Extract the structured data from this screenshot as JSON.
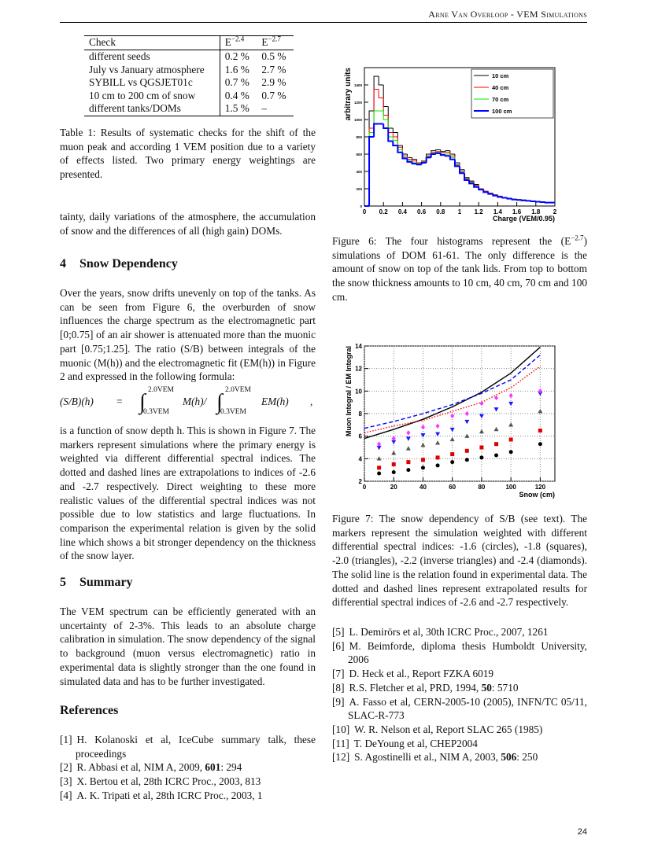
{
  "header": {
    "running_title": "Arne Van Overloop - VEM Simulations",
    "page_number": "24"
  },
  "table": {
    "header": [
      "Check",
      {
        "base": "E",
        "sup": "−2.4"
      },
      {
        "base": "E",
        "sup": "−2.7"
      }
    ],
    "rows": [
      [
        "different seeds",
        "0.2 %",
        "0.5 %"
      ],
      [
        "July vs January atmosphere",
        "1.6 %",
        "2.7 %"
      ],
      [
        "SYBILL vs QGSJET01c",
        "0.7 %",
        "2.9 %"
      ],
      [
        "10 cm to 200 cm of snow",
        "0.4 %",
        "0.7 %"
      ],
      [
        "different tanks/DOMs",
        "1.5 %",
        "–"
      ]
    ],
    "caption": "Table 1: Results of systematic checks for the shift of the muon peak and according 1 VEM position due to a variety of effects listed. Two primary energy weightings are presented."
  },
  "continuation": "tainty, daily variations of the atmosphere, the accumulation of snow and the differences of all (high gain) DOMs.",
  "section4": {
    "number": "4",
    "title": "Snow Dependency",
    "paragraph_1": "Over the years, snow drifts unevenly on top of the tanks. As can be seen from Figure 6, the overburden of snow influences the charge spectrum as the electromagnetic part [0;0.75] of an air shower is attenuated more than the muonic part [0.75;1.25]. The ratio (S/B) between integrals of the muonic (M(h)) and the electromagnetic fit (EM(h)) in Figure 2 and expressed in the following formula:",
    "formula": {
      "lhs": "(S/B)(h)",
      "equals": "=",
      "integral": "∫",
      "upper": "2.0VEM",
      "lower": "0.3VEM",
      "numerator": "M(h)/",
      "denominator": "EM(h)",
      "end": ","
    },
    "paragraph_2": "is a function of snow depth h. This is shown in Figure 7. The markers represent simulations where the primary energy is weighted via different differential spectral indices. The dotted and dashed lines are extrapolations to indices of -2.6 and -2.7 respectively. Direct weighting to these more realistic values of the differential spectral indices was not possible due to low statistics and large fluctuations. In comparison the experimental relation is given by the solid line which shows a bit stronger dependency on the thickness of the snow layer."
  },
  "section5": {
    "number": "5",
    "title": "Summary",
    "paragraph": "The VEM spectrum can be efficiently generated with an uncertainty of 2-3%. This leads to an absolute charge calibration in simulation. The snow dependency of the signal to background (muon versus electromagnetic) ratio in experimental data is slightly stronger than the one found in simulated data and has to be further investigated."
  },
  "figure6": {
    "caption_before": "Figure 6: The four histograms represent the (E",
    "caption_sup": "−2.7",
    "caption_after": ") simulations of DOM 61-61. The only difference is the amount of snow on top of the tank lids. From top to bottom the snow thickness amounts to 10 cm, 40 cm, 70 cm and 100 cm."
  },
  "figure7": {
    "caption": "Figure 7: The snow dependency of S/B (see text). The markers represent the simulation weighted with different differential spectral indices: -1.6 (circles), -1.8 (squares), -2.0 (triangles), -2.2 (inverse triangles) and -2.4 (diamonds). The solid line is the relation found in experimental data. The dotted and dashed lines represent extrapolated results for differential spectral indices of -2.6 and -2.7 respectively."
  },
  "references": {
    "title": "References",
    "items": [
      {
        "label": "[1]",
        "segments": [
          {
            "text": "H. Kolanoski et al, IceCube summary talk, these proceedings"
          }
        ]
      },
      {
        "label": "[2]",
        "segments": [
          {
            "text": "R. Abbasi et al, NIM A, 2009, "
          },
          {
            "text": "601",
            "bold": true
          },
          {
            "text": ": 294"
          }
        ]
      },
      {
        "label": "[3]",
        "segments": [
          {
            "text": "X. Bertou et al, 28th ICRC Proc., 2003, 813"
          }
        ]
      },
      {
        "label": "[4]",
        "segments": [
          {
            "text": "A. K. Tripati et al, 28th ICRC Proc., 2003, 1"
          }
        ]
      },
      {
        "label": "[5]",
        "segments": [
          {
            "text": "L. Demirörs et al, 30th ICRC Proc., 2007, 1261"
          }
        ]
      },
      {
        "label": "[6]",
        "segments": [
          {
            "text": "M. Beimforde, diploma thesis Humboldt University, 2006"
          }
        ]
      },
      {
        "label": "[7]",
        "segments": [
          {
            "text": "D. Heck et al., Report FZKA 6019"
          }
        ]
      },
      {
        "label": "[8]",
        "segments": [
          {
            "text": "R.S. Fletcher et al, PRD, 1994, "
          },
          {
            "text": "50",
            "bold": true
          },
          {
            "text": ": 5710"
          }
        ]
      },
      {
        "label": "[9]",
        "segments": [
          {
            "text": "A. Fasso et al, CERN-2005-10 (2005), INFN/TC 05/11, SLAC-R-773"
          }
        ]
      },
      {
        "label": "[10]",
        "segments": [
          {
            "text": "W. R. Nelson et al, Report SLAC 265 (1985)"
          }
        ]
      },
      {
        "label": "[11]",
        "segments": [
          {
            "text": "T. DeYoung et al, CHEP2004"
          }
        ]
      },
      {
        "label": "[12]",
        "segments": [
          {
            "text": "S. Agostinelli et al., NIM A, 2003, "
          },
          {
            "text": "506",
            "bold": true
          },
          {
            "text": ": 250"
          }
        ]
      }
    ]
  },
  "chart_data": [
    {
      "type": "histogram",
      "ylabel": "arbitrary units",
      "xlabel": "Charge (VEM/0.95)",
      "legend": "top-right",
      "bins": [
        0,
        0.05,
        0.1,
        0.15,
        0.2,
        0.25,
        0.3,
        0.35,
        0.4,
        0.45,
        0.5,
        0.55,
        0.6,
        0.65,
        0.7,
        0.75,
        0.8,
        0.85,
        0.9,
        0.95,
        1,
        1.05,
        1.1,
        1.15,
        1.2,
        1.25,
        1.3,
        1.35,
        1.4,
        1.45,
        1.5,
        1.55,
        1.6,
        1.65,
        1.7,
        1.75,
        1.8,
        1.85,
        1.9,
        1.95,
        2
      ],
      "series": [
        {
          "name": "10 cm",
          "color": "#000000",
          "values": [
            0,
            1100,
            1500,
            1400,
            1150,
            900,
            850,
            700,
            600,
            560,
            540,
            500,
            520,
            600,
            640,
            650,
            630,
            640,
            600,
            500,
            420,
            330,
            290,
            250,
            200,
            170,
            150,
            130,
            110,
            100,
            90,
            80,
            70,
            70,
            60,
            55,
            50,
            45,
            40,
            40
          ]
        },
        {
          "name": "40 cm",
          "color": "#ff0000",
          "values": [
            0,
            900,
            1350,
            1250,
            1050,
            850,
            800,
            680,
            580,
            540,
            520,
            500,
            520,
            580,
            620,
            630,
            620,
            620,
            580,
            480,
            400,
            320,
            280,
            240,
            200,
            170,
            150,
            130,
            115,
            100,
            90,
            80,
            75,
            70,
            60,
            55,
            50,
            45,
            40,
            40
          ]
        },
        {
          "name": "70 cm",
          "color": "#00ee00",
          "values": [
            0,
            850,
            1100,
            1100,
            1000,
            800,
            760,
            650,
            560,
            520,
            500,
            490,
            510,
            570,
            610,
            620,
            600,
            600,
            560,
            470,
            390,
            310,
            270,
            230,
            195,
            165,
            145,
            125,
            110,
            100,
            90,
            80,
            75,
            70,
            60,
            55,
            50,
            45,
            40,
            40
          ]
        },
        {
          "name": "100 cm",
          "color": "#0000ff",
          "values": [
            0,
            800,
            950,
            950,
            900,
            750,
            700,
            620,
            550,
            510,
            490,
            480,
            500,
            560,
            600,
            610,
            590,
            580,
            540,
            460,
            380,
            300,
            260,
            220,
            190,
            160,
            140,
            120,
            105,
            95,
            85,
            75,
            70,
            65,
            60,
            55,
            50,
            45,
            40,
            40
          ]
        }
      ],
      "xlim": [
        0,
        2
      ],
      "ylim": [
        0,
        1600
      ],
      "xticks": [
        0,
        0.2,
        0.4,
        0.6,
        0.8,
        1,
        1.2,
        1.4,
        1.6,
        1.8,
        2
      ],
      "yticks": [
        0,
        200,
        400,
        600,
        800,
        1000,
        1200,
        1400
      ]
    },
    {
      "type": "scatter",
      "ylabel": "Muon Integral / EM Integral",
      "xlabel": "Snow (cm)",
      "grid": true,
      "xlim": [
        0,
        130
      ],
      "ylim": [
        2,
        14
      ],
      "xticks": [
        0,
        20,
        40,
        60,
        80,
        100,
        120
      ],
      "yticks": [
        2,
        4,
        6,
        8,
        10,
        12,
        14
      ],
      "series": [
        {
          "marker": "circle",
          "color": "#000000",
          "x": [
            10,
            20,
            30,
            40,
            50,
            60,
            70,
            80,
            90,
            100,
            120
          ],
          "values": [
            2.7,
            2.8,
            3.0,
            3.2,
            3.4,
            3.7,
            3.9,
            4.1,
            4.3,
            4.6,
            5.3
          ]
        },
        {
          "marker": "square",
          "color": "#e00000",
          "x": [
            10,
            20,
            30,
            40,
            50,
            60,
            70,
            80,
            90,
            100,
            120
          ],
          "values": [
            3.2,
            3.5,
            3.7,
            3.9,
            4.1,
            4.4,
            4.7,
            5.0,
            5.3,
            5.7,
            6.5
          ]
        },
        {
          "marker": "triangle",
          "color": "#555555",
          "x": [
            10,
            20,
            30,
            40,
            50,
            60,
            70,
            80,
            90,
            100,
            120
          ],
          "values": [
            4.0,
            4.5,
            4.9,
            5.2,
            5.4,
            5.7,
            6.0,
            6.4,
            6.6,
            7.0,
            8.2
          ]
        },
        {
          "marker": "inverse-triangle",
          "color": "#1a1aff",
          "x": [
            10,
            20,
            30,
            40,
            50,
            60,
            70,
            80,
            90,
            100,
            120
          ],
          "values": [
            5.0,
            5.5,
            5.8,
            6.1,
            6.2,
            6.6,
            7.3,
            7.8,
            8.4,
            8.9,
            9.8
          ]
        },
        {
          "marker": "diamond",
          "color": "#ff33ff",
          "x": [
            10,
            20,
            30,
            40,
            50,
            60,
            70,
            80,
            90,
            100,
            120
          ],
          "values": [
            5.3,
            5.8,
            6.3,
            6.8,
            6.9,
            7.8,
            8.0,
            8.9,
            9.4,
            9.6,
            10.0
          ]
        },
        {
          "line": "solid",
          "color": "#000000",
          "x": [
            0,
            20,
            40,
            60,
            80,
            100,
            120
          ],
          "values": [
            5.8,
            6.6,
            7.5,
            8.6,
            9.9,
            11.6,
            13.9
          ]
        },
        {
          "line": "dashed",
          "color": "#0000ff",
          "x": [
            0,
            20,
            40,
            60,
            80,
            100,
            120
          ],
          "values": [
            6.7,
            7.3,
            8.0,
            8.8,
            9.8,
            11.0,
            13.2
          ]
        },
        {
          "line": "dotted",
          "color": "#ff0000",
          "x": [
            0,
            20,
            40,
            60,
            80,
            100,
            120
          ],
          "values": [
            6.3,
            6.9,
            7.4,
            8.2,
            9.0,
            10.3,
            12.2
          ]
        }
      ]
    }
  ]
}
